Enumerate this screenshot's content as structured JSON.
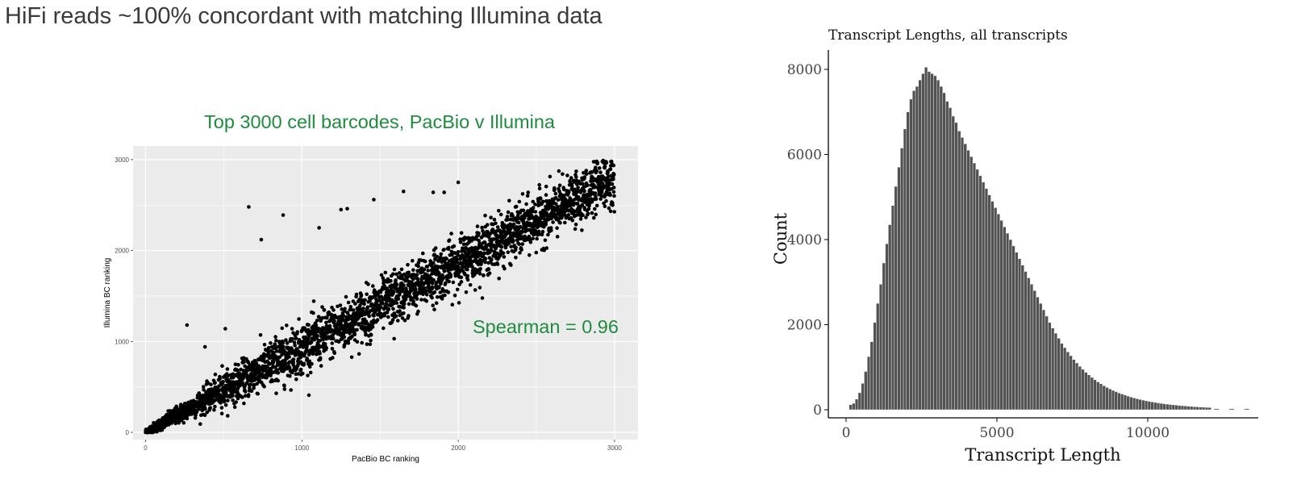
{
  "slide": {
    "title": "HiFi reads ~100% concordant with matching Illumina data"
  },
  "colors": {
    "accent_green": "#1e8c3e",
    "panel_bg": "#ebebeb",
    "grid": "#ffffff",
    "point": "#000000",
    "bar_fill": "#525252",
    "bar_edge": "#ffffff"
  },
  "chart_data": [
    {
      "type": "scatter",
      "title": "Top 3000 cell barcodes, PacBio v Illumina",
      "xlabel": "PacBio BC ranking",
      "ylabel": "Illumina BC ranking",
      "xlim": [
        -80,
        3150
      ],
      "ylim": [
        -80,
        3150
      ],
      "xticks": [
        0,
        1000,
        2000,
        3000
      ],
      "yticks": [
        0,
        1000,
        2000,
        3000
      ],
      "grid": true,
      "annotation": "Spearman = 0.96",
      "n_points": 3000,
      "trend": {
        "slope": 0.93,
        "intercept": 0,
        "spread_sd": 140
      },
      "outliers": [
        [
          660,
          2480
        ],
        [
          880,
          2390
        ],
        [
          740,
          2120
        ],
        [
          1110,
          2250
        ],
        [
          1250,
          2450
        ],
        [
          1290,
          2460
        ],
        [
          1460,
          2560
        ],
        [
          1650,
          2650
        ],
        [
          1840,
          2640
        ],
        [
          1910,
          2640
        ],
        [
          2000,
          2750
        ],
        [
          265,
          1180
        ],
        [
          510,
          1140
        ],
        [
          380,
          940
        ],
        [
          490,
          730
        ],
        [
          790,
          880
        ],
        [
          1040,
          1080
        ],
        [
          2580,
          2220
        ],
        [
          1440,
          1010
        ],
        [
          1590,
          1030
        ]
      ]
    },
    {
      "type": "bar",
      "title": "Transcript Lengths, all transcripts",
      "xlabel": "Transcript Length",
      "ylabel": "Count",
      "xlim": [
        -500,
        13800
      ],
      "ylim": [
        0,
        8300
      ],
      "xticks": [
        0,
        5000,
        10000
      ],
      "yticks": [
        0,
        2000,
        4000,
        6000,
        8000
      ],
      "bin_width": 100,
      "bin_start": 100,
      "values": [
        120,
        150,
        250,
        400,
        620,
        900,
        1250,
        1600,
        2050,
        2500,
        2950,
        3450,
        3900,
        4350,
        4800,
        5250,
        5700,
        6150,
        6600,
        7000,
        7300,
        7500,
        7600,
        7750,
        7900,
        8050,
        7950,
        7900,
        7850,
        7750,
        7600,
        7450,
        7250,
        7100,
        6900,
        6750,
        6550,
        6400,
        6250,
        6100,
        5950,
        5800,
        5650,
        5500,
        5350,
        5200,
        5050,
        4900,
        4750,
        4600,
        4450,
        4300,
        4150,
        4000,
        3850,
        3700,
        3550,
        3400,
        3250,
        3100,
        2950,
        2800,
        2650,
        2500,
        2350,
        2200,
        2050,
        1920,
        1800,
        1680,
        1560,
        1460,
        1360,
        1270,
        1180,
        1100,
        1020,
        950,
        880,
        820,
        760,
        705,
        655,
        610,
        565,
        525,
        490,
        455,
        425,
        395,
        370,
        345,
        320,
        298,
        278,
        260,
        242,
        226,
        211,
        197,
        184,
        172,
        161,
        150,
        140,
        131,
        123,
        115,
        108,
        101,
        95,
        89,
        83,
        78,
        73,
        68,
        64,
        60,
        56,
        52
      ],
      "tail_dashes_x": [
        12200,
        12700,
        13200
      ]
    }
  ]
}
